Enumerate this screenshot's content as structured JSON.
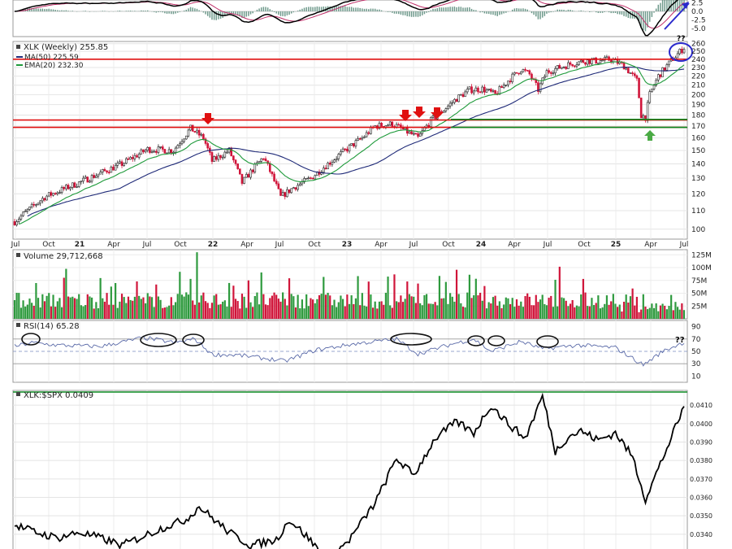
{
  "macd_panel": {
    "ticks": [
      "2.5",
      "0.0",
      "-2.5",
      "-5.0"
    ]
  },
  "price_panel": {
    "legend": {
      "title": "XLK (Weekly) 255.85",
      "ma50": "MA(50) 225.59",
      "ema20": "EMA(20) 232.30"
    },
    "y_ticks": [
      "260",
      "250",
      "240",
      "230",
      "220",
      "210",
      "200",
      "190",
      "180",
      "170",
      "160",
      "150",
      "140",
      "130",
      "120",
      "110",
      "100"
    ],
    "x_ticks": [
      "Jul",
      "Oct",
      "21",
      "Apr",
      "Jul",
      "Oct",
      "22",
      "Apr",
      "Jul",
      "Oct",
      "23",
      "Apr",
      "Jul",
      "Oct",
      "24",
      "Apr",
      "Jul",
      "Oct",
      "25",
      "Apr",
      "Jul"
    ],
    "annotation_q": "??"
  },
  "volume_panel": {
    "legend": "Volume 29,712,668",
    "y_ticks": [
      "125M",
      "100M",
      "75M",
      "50M",
      "25M"
    ]
  },
  "rsi_panel": {
    "legend": "RSI(14) 65.28",
    "y_ticks": [
      "90",
      "70",
      "50",
      "30",
      "10"
    ],
    "annotation_q": "??"
  },
  "ratio_panel": {
    "legend": "XLK:$SPX 0.0409",
    "y_ticks": [
      "0.0410",
      "0.0400",
      "0.0390",
      "0.0380",
      "0.0370",
      "0.0360",
      "0.0350",
      "0.0340"
    ]
  },
  "colors": {
    "up": "#2e9a3e",
    "down": "#d0153a",
    "ma50": "#1f2a78",
    "ema20": "#1e9a3a",
    "resistance": "#e01010",
    "support": "#0a8a20",
    "annotation": "#2a2acc",
    "rsi": "#5a6aa8",
    "macd_fast": "#000000",
    "macd_slow": "#c0306a",
    "macd_hist": "#6f9a8c"
  },
  "chart_data": [
    {
      "type": "candlestick",
      "title": "XLK (Weekly) 255.85",
      "x_ticks": [
        "Jul",
        "Oct",
        "21",
        "Apr",
        "Jul",
        "Oct",
        "22",
        "Apr",
        "Jul",
        "Oct",
        "23",
        "Apr",
        "Jul",
        "Oct",
        "24",
        "Apr",
        "Jul",
        "Oct",
        "25",
        "Apr",
        "Jul"
      ],
      "ylim": [
        95,
        263
      ],
      "scale": "log",
      "grid": true,
      "series_key": [
        {
          "t": 0,
          "v": 104
        },
        {
          "t": 14,
          "v": 118
        },
        {
          "t": 30,
          "v": 127
        },
        {
          "t": 50,
          "v": 140
        },
        {
          "t": 62,
          "v": 151
        },
        {
          "t": 74,
          "v": 150
        },
        {
          "t": 82,
          "v": 168
        },
        {
          "t": 88,
          "v": 160
        },
        {
          "t": 92,
          "v": 142
        },
        {
          "t": 100,
          "v": 150
        },
        {
          "t": 106,
          "v": 127
        },
        {
          "t": 116,
          "v": 145
        },
        {
          "t": 124,
          "v": 118
        },
        {
          "t": 130,
          "v": 124
        },
        {
          "t": 138,
          "v": 130
        },
        {
          "t": 146,
          "v": 140
        },
        {
          "t": 154,
          "v": 150
        },
        {
          "t": 162,
          "v": 160
        },
        {
          "t": 168,
          "v": 170
        },
        {
          "t": 176,
          "v": 172
        },
        {
          "t": 182,
          "v": 166
        },
        {
          "t": 188,
          "v": 160
        },
        {
          "t": 194,
          "v": 175
        },
        {
          "t": 200,
          "v": 185
        },
        {
          "t": 206,
          "v": 196
        },
        {
          "t": 212,
          "v": 205
        },
        {
          "t": 218,
          "v": 206
        },
        {
          "t": 224,
          "v": 200
        },
        {
          "t": 230,
          "v": 215
        },
        {
          "t": 236,
          "v": 228
        },
        {
          "t": 240,
          "v": 222
        },
        {
          "t": 244,
          "v": 205
        },
        {
          "t": 248,
          "v": 225
        },
        {
          "t": 254,
          "v": 230
        },
        {
          "t": 260,
          "v": 235
        },
        {
          "t": 266,
          "v": 238
        },
        {
          "t": 272,
          "v": 238
        },
        {
          "t": 278,
          "v": 240
        },
        {
          "t": 284,
          "v": 232
        },
        {
          "t": 290,
          "v": 215
        },
        {
          "t": 292,
          "v": 180
        },
        {
          "t": 294,
          "v": 178
        },
        {
          "t": 296,
          "v": 200
        },
        {
          "t": 300,
          "v": 220
        },
        {
          "t": 306,
          "v": 238
        },
        {
          "t": 312,
          "v": 255
        }
      ],
      "horizontal_lines": [
        240,
        175,
        170
      ],
      "support_lines": [
        176,
        170
      ],
      "markers": {
        "down_arrows_t": [
          88,
          177,
          182,
          190
        ],
        "up_arrow_t": 293
      }
    },
    {
      "type": "bar",
      "title": "Volume 29,712,668",
      "ylim": [
        0,
        135
      ],
      "y_unit": "M"
    },
    {
      "type": "line",
      "title": "RSI(14) 65.28",
      "ylim": [
        0,
        100
      ],
      "levels": [
        70,
        50,
        30
      ],
      "series_key": [
        {
          "t": 0,
          "v": 58
        },
        {
          "t": 8,
          "v": 64
        },
        {
          "t": 20,
          "v": 60
        },
        {
          "t": 40,
          "v": 58
        },
        {
          "t": 60,
          "v": 72
        },
        {
          "t": 75,
          "v": 64
        },
        {
          "t": 84,
          "v": 70
        },
        {
          "t": 92,
          "v": 45
        },
        {
          "t": 104,
          "v": 44
        },
        {
          "t": 118,
          "v": 38
        },
        {
          "t": 126,
          "v": 34
        },
        {
          "t": 140,
          "v": 52
        },
        {
          "t": 158,
          "v": 62
        },
        {
          "t": 178,
          "v": 70
        },
        {
          "t": 188,
          "v": 46
        },
        {
          "t": 204,
          "v": 62
        },
        {
          "t": 214,
          "v": 70
        },
        {
          "t": 222,
          "v": 50
        },
        {
          "t": 236,
          "v": 66
        },
        {
          "t": 246,
          "v": 54
        },
        {
          "t": 262,
          "v": 60
        },
        {
          "t": 280,
          "v": 56
        },
        {
          "t": 293,
          "v": 28
        },
        {
          "t": 302,
          "v": 50
        },
        {
          "t": 312,
          "v": 65
        }
      ]
    },
    {
      "type": "line",
      "title": "XLK:$SPX 0.0409",
      "ylim": [
        0.0332,
        0.0418
      ],
      "series_key": [
        {
          "t": 0,
          "v": 0.0345
        },
        {
          "t": 10,
          "v": 0.0341
        },
        {
          "t": 20,
          "v": 0.0338
        },
        {
          "t": 30,
          "v": 0.0341
        },
        {
          "t": 40,
          "v": 0.0338
        },
        {
          "t": 50,
          "v": 0.0334
        },
        {
          "t": 60,
          "v": 0.0339
        },
        {
          "t": 70,
          "v": 0.0344
        },
        {
          "t": 80,
          "v": 0.0348
        },
        {
          "t": 86,
          "v": 0.0355
        },
        {
          "t": 92,
          "v": 0.0349
        },
        {
          "t": 100,
          "v": 0.0341
        },
        {
          "t": 110,
          "v": 0.0334
        },
        {
          "t": 122,
          "v": 0.0337
        },
        {
          "t": 128,
          "v": 0.0348
        },
        {
          "t": 136,
          "v": 0.0339
        },
        {
          "t": 146,
          "v": 0.0326
        },
        {
          "t": 156,
          "v": 0.0337
        },
        {
          "t": 168,
          "v": 0.0357
        },
        {
          "t": 178,
          "v": 0.0381
        },
        {
          "t": 186,
          "v": 0.0372
        },
        {
          "t": 196,
          "v": 0.0392
        },
        {
          "t": 206,
          "v": 0.0401
        },
        {
          "t": 214,
          "v": 0.0395
        },
        {
          "t": 222,
          "v": 0.041
        },
        {
          "t": 230,
          "v": 0.04
        },
        {
          "t": 238,
          "v": 0.0392
        },
        {
          "t": 246,
          "v": 0.0415
        },
        {
          "t": 252,
          "v": 0.0385
        },
        {
          "t": 258,
          "v": 0.0393
        },
        {
          "t": 264,
          "v": 0.0396
        },
        {
          "t": 272,
          "v": 0.0391
        },
        {
          "t": 280,
          "v": 0.0395
        },
        {
          "t": 288,
          "v": 0.0382
        },
        {
          "t": 294,
          "v": 0.0359
        },
        {
          "t": 302,
          "v": 0.0381
        },
        {
          "t": 312,
          "v": 0.0409
        }
      ]
    }
  ]
}
